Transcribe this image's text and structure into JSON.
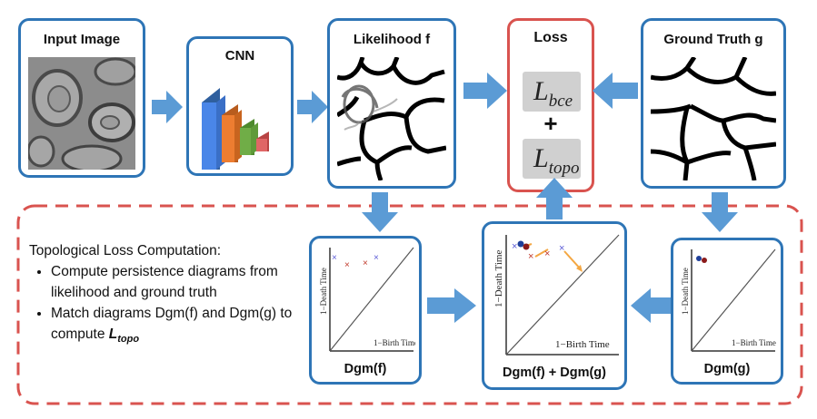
{
  "top_row": {
    "input_title": "Input Image",
    "cnn_title": "CNN",
    "likelihood_title": "Likelihood f",
    "loss_title": "Loss",
    "gt_title": "Ground Truth g"
  },
  "loss": {
    "bce_main": "L",
    "bce_sub": "bce",
    "plus": "+",
    "topo_main": "L",
    "topo_sub": "topo"
  },
  "bottom": {
    "heading": "Topological Loss Computation:",
    "bullet1": "Compute persistence diagrams from likelihood and ground truth",
    "bullet2_prefix": "Match diagrams Dgm(f) and Dgm(g)  to compute ",
    "bullet2_term_main": "L",
    "bullet2_term_sub": "topo"
  },
  "diagrams": {
    "f_label": "Dgm(f)",
    "fg_label": "Dgm(f) + Dgm(g)",
    "g_label": "Dgm(g)",
    "ylabel": "1−Death Time",
    "xlabel": "1−Birth Time"
  },
  "colors": {
    "box_border": "#2e75b6",
    "loss_border": "#d9534f",
    "dashed_border": "#d9534f",
    "arrow": "#5b9bd5",
    "cnn_layers": [
      "#4a86e8",
      "#ed7d31",
      "#70ad47",
      "#e06666"
    ],
    "points_f": "#c0392b",
    "points_f_alt": "#5b5bd6",
    "points_g": "#1f3f9a",
    "match_lines": "#f4a742"
  }
}
